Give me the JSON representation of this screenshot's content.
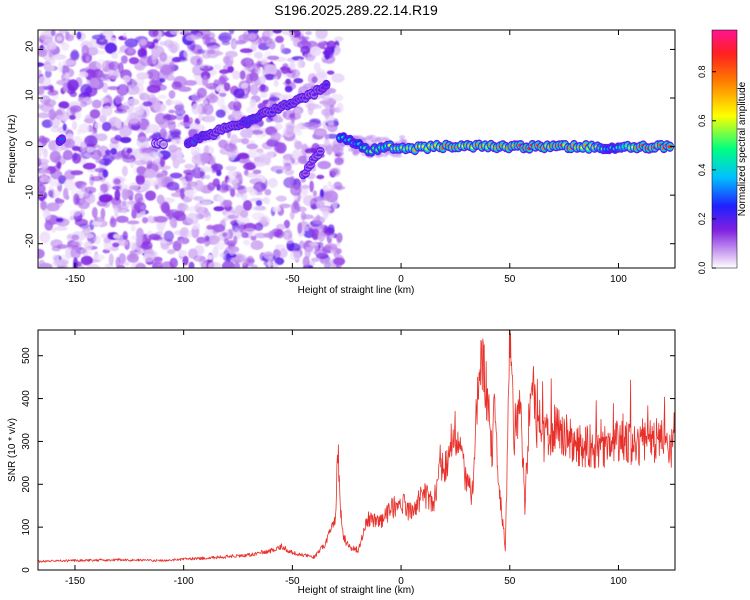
{
  "title": "S196.2025.289.22.14.R19",
  "chart_data": [
    {
      "type": "heatmap",
      "xlabel": "Height of straight line (km)",
      "ylabel": "Frequency (Hz)",
      "xlim": [
        -167,
        126
      ],
      "ylim": [
        -25,
        24
      ],
      "xticks": [
        -150,
        -100,
        -50,
        0,
        50,
        100
      ],
      "yticks": [
        -20,
        -10,
        0,
        10,
        20
      ],
      "colorbar": {
        "label": "Normalized spectral amplitude",
        "range": [
          0,
          0.97
        ],
        "ticks": [
          0.0,
          0.2,
          0.4,
          0.6,
          0.8
        ],
        "tick_labels": [
          "0.0",
          "0.2",
          "0.4",
          "0.6",
          "0.8"
        ],
        "colors": [
          "#ffffff",
          "#c9a0f0",
          "#8020e0",
          "#2020ff",
          "#00c0ff",
          "#00ff80",
          "#ffff00",
          "#ff8000",
          "#ff2020",
          "#ff1493"
        ]
      },
      "noise_region_x": [
        -167,
        -28
      ],
      "trace": [
        {
          "x": -157,
          "y": 1.5,
          "amp": 0.3
        },
        {
          "x": -113,
          "y": 0.5,
          "amp": 0.12
        },
        {
          "x": -98,
          "y": 1.0,
          "amp": 0.3
        },
        {
          "x": -90,
          "y": 2.0,
          "amp": 0.3
        },
        {
          "x": -85,
          "y": 3.0,
          "amp": 0.22
        },
        {
          "x": -75,
          "y": 4.5,
          "amp": 0.25
        },
        {
          "x": -68,
          "y": 5.5,
          "amp": 0.35
        },
        {
          "x": -62,
          "y": 7.0,
          "amp": 0.22
        },
        {
          "x": -55,
          "y": 8.0,
          "amp": 0.25
        },
        {
          "x": -48,
          "y": 9.5,
          "amp": 0.25
        },
        {
          "x": -40,
          "y": 11.0,
          "amp": 0.2
        },
        {
          "x": -33,
          "y": 13.0,
          "amp": 0.3
        },
        {
          "x": -28,
          "y": 2.0,
          "amp": 0.5
        },
        {
          "x": -22,
          "y": 1.0,
          "amp": 0.4
        },
        {
          "x": -15,
          "y": -1.0,
          "amp": 0.55
        },
        {
          "x": -5,
          "y": 0.0,
          "amp": 0.6
        },
        {
          "x": 5,
          "y": -0.5,
          "amp": 0.7
        },
        {
          "x": 15,
          "y": 0.0,
          "amp": 0.75
        },
        {
          "x": 25,
          "y": 0.0,
          "amp": 0.85
        },
        {
          "x": 40,
          "y": 0.0,
          "amp": 0.75
        },
        {
          "x": 55,
          "y": 0.0,
          "amp": 0.9
        },
        {
          "x": 70,
          "y": 0.0,
          "amp": 0.9
        },
        {
          "x": 85,
          "y": 0.0,
          "amp": 0.85
        },
        {
          "x": 97,
          "y": -0.5,
          "amp": 0.4
        },
        {
          "x": 110,
          "y": 0.0,
          "amp": 0.95
        },
        {
          "x": 125,
          "y": 0.0,
          "amp": 0.9
        }
      ],
      "secondary_trace": [
        {
          "x": -45,
          "y": -5.0,
          "amp": 0.2
        },
        {
          "x": -35,
          "y": 4.0,
          "amp": 0.2
        }
      ]
    },
    {
      "type": "line",
      "xlabel": "Height of straight line (km)",
      "ylabel": "SNR (10 * v/v)",
      "xlim": [
        -167,
        126
      ],
      "ylim": [
        0,
        560
      ],
      "xticks": [
        -150,
        -100,
        -50,
        0,
        50,
        100
      ],
      "yticks": [
        0,
        100,
        200,
        300,
        400,
        500
      ],
      "color": "#e8302a",
      "series": [
        {
          "name": "SNR",
          "x": [
            -167,
            -150,
            -130,
            -110,
            -90,
            -70,
            -60,
            -55,
            -50,
            -40,
            -35,
            -30,
            -29,
            -28,
            -27,
            -25,
            -20,
            -15,
            -10,
            -5,
            0,
            5,
            10,
            15,
            18,
            20,
            25,
            30,
            33,
            35,
            36,
            38,
            40,
            42,
            43,
            45,
            47,
            48,
            49,
            50,
            52,
            55,
            57,
            60,
            62,
            65,
            70,
            75,
            80,
            90,
            100,
            110,
            120,
            126
          ],
          "y": [
            20,
            22,
            24,
            22,
            28,
            35,
            45,
            55,
            40,
            30,
            60,
            120,
            300,
            150,
            90,
            60,
            45,
            120,
            110,
            140,
            160,
            130,
            180,
            150,
            250,
            230,
            330,
            200,
            180,
            390,
            460,
            470,
            380,
            280,
            430,
            200,
            100,
            50,
            300,
            560,
            320,
            380,
            150,
            470,
            350,
            300,
            330,
            320,
            290,
            280,
            300,
            290,
            310,
            280
          ]
        }
      ]
    }
  ]
}
